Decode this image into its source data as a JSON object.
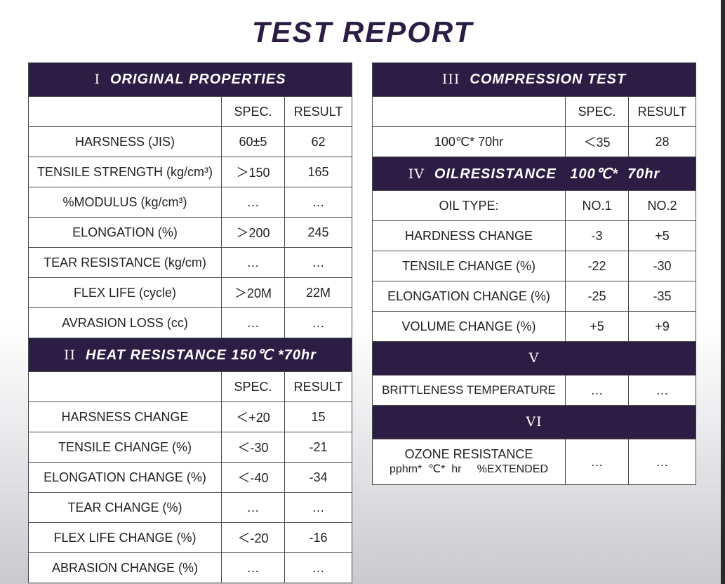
{
  "title": "TEST REPORT",
  "left": {
    "s1": {
      "numeral": "I",
      "title": "ORIGINAL PROPERTIES"
    },
    "s1_cols": {
      "spec": "SPEC.",
      "result": "RESULT"
    },
    "s1_rows": [
      {
        "name": "HARSNESS (JIS)",
        "spec": "60±5",
        "result": "62"
      },
      {
        "name": "TENSILE STRENGTH (kg/cm³)",
        "spec": "＞150",
        "result": "165"
      },
      {
        "name": "%MODULUS (kg/cm³)",
        "spec": "…",
        "result": "…"
      },
      {
        "name": "ELONGATION (%)",
        "spec": "＞200",
        "result": "245"
      },
      {
        "name": "TEAR RESISTANCE (kg/cm)",
        "spec": "…",
        "result": "…"
      },
      {
        "name": "FLEX LIFE (cycle)",
        "spec": "＞20M",
        "result": "22M"
      },
      {
        "name": "AVRASION LOSS (cc)",
        "spec": "…",
        "result": "…"
      }
    ],
    "s2": {
      "numeral": "II",
      "title": "HEAT RESISTANCE 150℃ *70hr"
    },
    "s2_cols": {
      "spec": "SPEC.",
      "result": "RESULT"
    },
    "s2_rows": [
      {
        "name": "HARSNESS CHANGE",
        "spec": "＜+20",
        "result": "15"
      },
      {
        "name": "TENSILE CHANGE (%)",
        "spec": "＜-30",
        "result": "-21"
      },
      {
        "name": "ELONGATION CHANGE (%)",
        "spec": "＜-40",
        "result": "-34"
      },
      {
        "name": "TEAR CHANGE (%)",
        "spec": "…",
        "result": "…"
      },
      {
        "name": "FLEX LIFE CHANGE (%)",
        "spec": "＜-20",
        "result": "-16"
      },
      {
        "name": "ABRASION CHANGE (%)",
        "spec": "…",
        "result": "…"
      }
    ]
  },
  "right": {
    "s3": {
      "numeral": "III",
      "title": "COMPRESSION TEST"
    },
    "s3_cols": {
      "spec": "SPEC.",
      "result": "RESULT"
    },
    "s3_rows": [
      {
        "name": "100℃* 70hr",
        "spec": "＜35",
        "result": "28"
      }
    ],
    "s4": {
      "numeral": "IV",
      "title": "OILRESISTANCE   100℃*  70hr"
    },
    "s4_cols": {
      "name": "OIL TYPE:",
      "c1": "NO.1",
      "c2": "NO.2"
    },
    "s4_rows": [
      {
        "name": "HARDNESS CHANGE",
        "c1": "-3",
        "c2": "+5"
      },
      {
        "name": "TENSILE CHANGE (%)",
        "c1": "-22",
        "c2": "-30"
      },
      {
        "name": "ELONGATION CHANGE (%)",
        "c1": "-25",
        "c2": "-35"
      },
      {
        "name": "VOLUME CHANGE (%)",
        "c1": "+5",
        "c2": "+9"
      }
    ],
    "s5": {
      "numeral": "V"
    },
    "s5_row": {
      "name": "BRITTLENESS TEMPERATURE",
      "c1": "…",
      "c2": "…"
    },
    "s6": {
      "numeral": "VI"
    },
    "s6_row": {
      "name1": "OZONE RESISTANCE",
      "name2": "pphm*  ℃*  hr     %EXTENDED",
      "c1": "…",
      "c2": "…"
    }
  }
}
